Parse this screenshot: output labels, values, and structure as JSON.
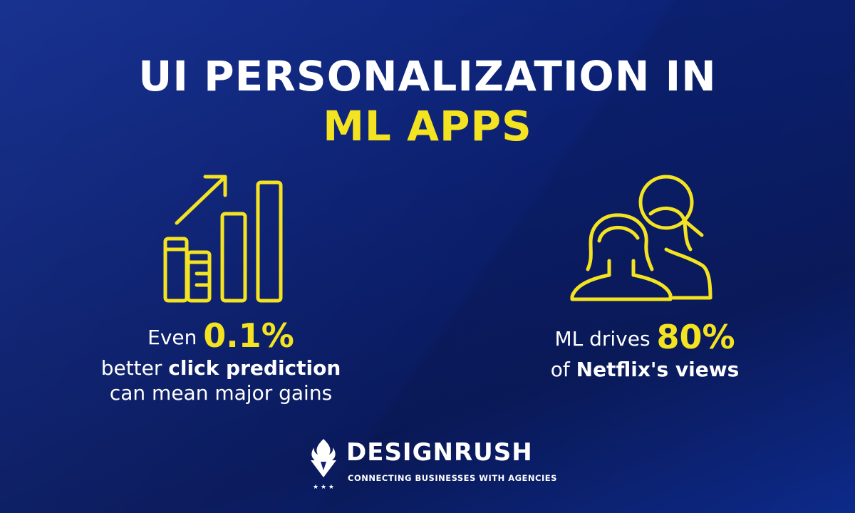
{
  "colors": {
    "accent": "#f4e320",
    "text": "#ffffff",
    "background": "#0d237a"
  },
  "title": {
    "line1": "UI PERSONALIZATION IN",
    "line2": "ML APPS"
  },
  "stat_left": {
    "icon": "bar-chart-growth-icon",
    "prefix": "Even",
    "value": "0.1%",
    "line2_regular": "better",
    "line2_bold": "click prediction",
    "line3": "can mean major gains"
  },
  "stat_right": {
    "icon": "people-search-icon",
    "prefix": "ML drives",
    "value": "80%",
    "line2_regular": "of",
    "line2_bold": "Netflix's views"
  },
  "brand": {
    "name": "DESIGNRUSH",
    "tagline": "CONNECTING BUSINESSES WITH AGENCIES"
  }
}
